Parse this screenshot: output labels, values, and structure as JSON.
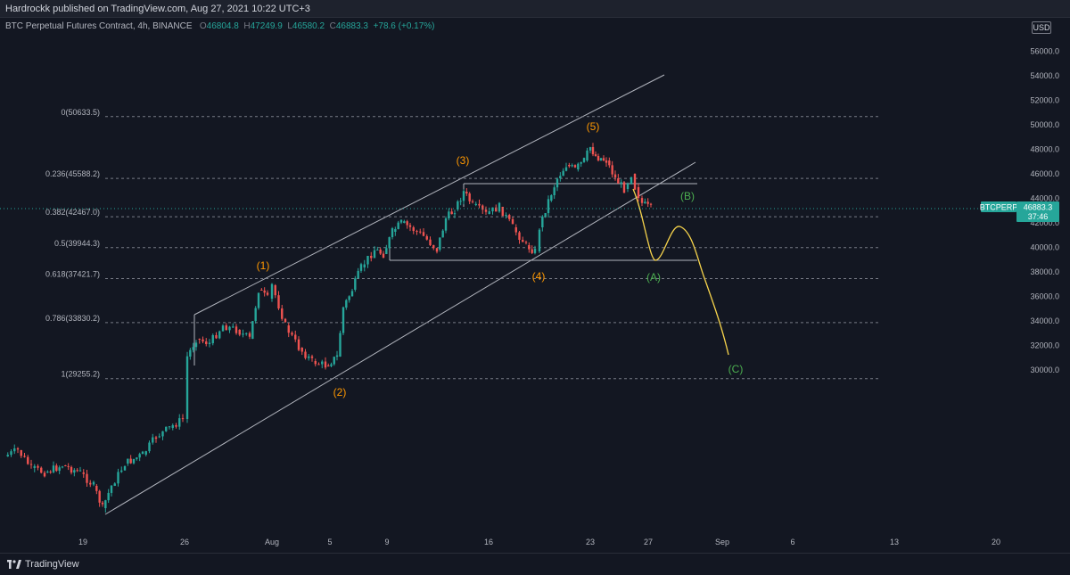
{
  "header": {
    "publisher_text": "Hardrockk published on TradingView.com, Aug 27, 2021 10:22 UTC+3"
  },
  "symbol": {
    "name": "BTC Perpetual Futures Contract, 4h, BINANCE",
    "open_label": "O",
    "open": "46804.8",
    "high_label": "H",
    "high": "47249.9",
    "low_label": "L",
    "low": "46580.2",
    "close_label": "C",
    "close": "46883.3",
    "change": "+78.6 (+0.17%)"
  },
  "currency": "USD",
  "price_tag": {
    "ticker": "BTCPERP",
    "price": "46883.3",
    "countdown": "37:46",
    "value": 46883.3,
    "color": "#26a69a"
  },
  "price_axis": {
    "ticks": [
      "56000.0",
      "54000.0",
      "52000.0",
      "50000.0",
      "48000.0",
      "46000.0",
      "44000.0",
      "42000.0",
      "40000.0",
      "38000.0",
      "36000.0",
      "34000.0",
      "32000.0",
      "30000.0"
    ]
  },
  "time_axis": {
    "ticks": [
      "19",
      "26",
      "Aug",
      "5",
      "9",
      "16",
      "23",
      "27",
      "Sep",
      "6",
      "13",
      "20"
    ]
  },
  "fib_levels": [
    {
      "label": "0(50633.5)",
      "price": 50633.5
    },
    {
      "label": "0.236(45588.2)",
      "price": 45588.2
    },
    {
      "label": "0.382(42467.0)",
      "price": 42467.0
    },
    {
      "label": "0.5(39944.3)",
      "price": 39944.3
    },
    {
      "label": "0.618(37421.7)",
      "price": 37421.7
    },
    {
      "label": "0.786(33830.2)",
      "price": 33830.2
    },
    {
      "label": "1(29255.2)",
      "price": 29255.2
    }
  ],
  "wave_labels": [
    {
      "text": "(1)",
      "color": "#ff9800"
    },
    {
      "text": "(2)",
      "color": "#ff9800"
    },
    {
      "text": "(3)",
      "color": "#ff9800"
    },
    {
      "text": "(4)",
      "color": "#ff9800"
    },
    {
      "text": "(5)",
      "color": "#ff9800"
    },
    {
      "text": "(A)",
      "color": "#4caf50"
    },
    {
      "text": "(B)",
      "color": "#4caf50"
    },
    {
      "text": "(C)",
      "color": "#4caf50"
    }
  ],
  "colors": {
    "up": "#26a69a",
    "down": "#ef5350",
    "projection": "#f7d44c",
    "background": "#131722"
  },
  "footer": {
    "brand": "TradingView",
    "logo_icon": "tradingview-logo-icon"
  }
}
